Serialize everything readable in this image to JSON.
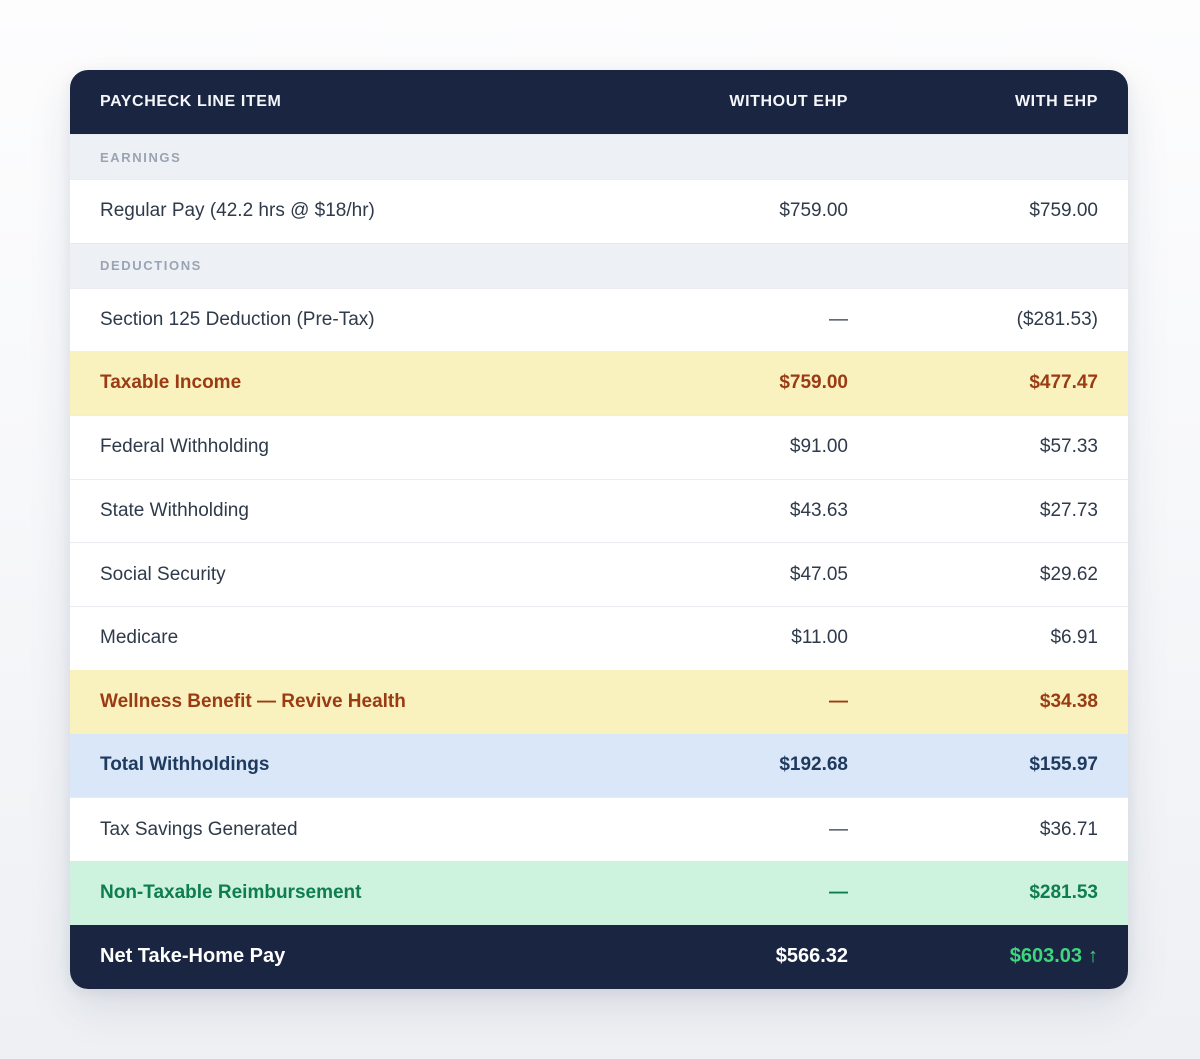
{
  "table": {
    "columns": [
      {
        "label": "PAYCHECK LINE ITEM"
      },
      {
        "label": "WITHOUT EHP"
      },
      {
        "label": "WITH EHP"
      }
    ],
    "rows": [
      {
        "type": "section",
        "label": "EARNINGS"
      },
      {
        "type": "data",
        "style": "normal",
        "label": "Regular Pay (42.2 hrs @ $18/hr)",
        "without_ehp": "$759.00",
        "with_ehp": "$759.00"
      },
      {
        "type": "section",
        "label": "DEDUCTIONS"
      },
      {
        "type": "data",
        "style": "normal",
        "label": "Section 125 Deduction (Pre-Tax)",
        "without_ehp": "—",
        "with_ehp": "($281.53)"
      },
      {
        "type": "data",
        "style": "highlight-yellow",
        "label": "Taxable Income",
        "without_ehp": "$759.00",
        "with_ehp": "$477.47"
      },
      {
        "type": "data",
        "style": "normal",
        "label": "Federal Withholding",
        "without_ehp": "$91.00",
        "with_ehp": "$57.33"
      },
      {
        "type": "data",
        "style": "normal",
        "label": "State Withholding",
        "without_ehp": "$43.63",
        "with_ehp": "$27.73"
      },
      {
        "type": "data",
        "style": "normal",
        "label": "Social Security",
        "without_ehp": "$47.05",
        "with_ehp": "$29.62"
      },
      {
        "type": "data",
        "style": "normal",
        "label": "Medicare",
        "without_ehp": "$11.00",
        "with_ehp": "$6.91"
      },
      {
        "type": "data",
        "style": "highlight-yellow",
        "label": "Wellness Benefit — Revive Health",
        "without_ehp": "—",
        "with_ehp": "$34.38"
      },
      {
        "type": "data",
        "style": "highlight-blue",
        "label": "Total Withholdings",
        "without_ehp": "$192.68",
        "with_ehp": "$155.97"
      },
      {
        "type": "data",
        "style": "normal",
        "label": "Tax Savings Generated",
        "without_ehp": "—",
        "with_ehp": "$36.71"
      },
      {
        "type": "data",
        "style": "highlight-green",
        "label": "Non-Taxable Reimbursement",
        "without_ehp": "—",
        "with_ehp": "$281.53"
      }
    ],
    "footer": {
      "label": "Net Take-Home Pay",
      "without_ehp": "$566.32",
      "with_ehp": "$603.03",
      "arrow": "↑"
    }
  },
  "colors": {
    "header_navy": "#1a2641",
    "header_text": "#f4f6fa",
    "section_bg": "#edf1f6",
    "section_text": "#9aa4b2",
    "row_text": "#2f3a4a",
    "row_border": "#e9edf2",
    "yellow_bg": "#faf2be",
    "yellow_text": "#9a3b14",
    "blue_bg": "#d9e7f9",
    "blue_text": "#1e3a5f",
    "green_bg": "#cdf2dd",
    "green_text": "#0e7d50",
    "footer_gain_green": "#3ed67d"
  }
}
